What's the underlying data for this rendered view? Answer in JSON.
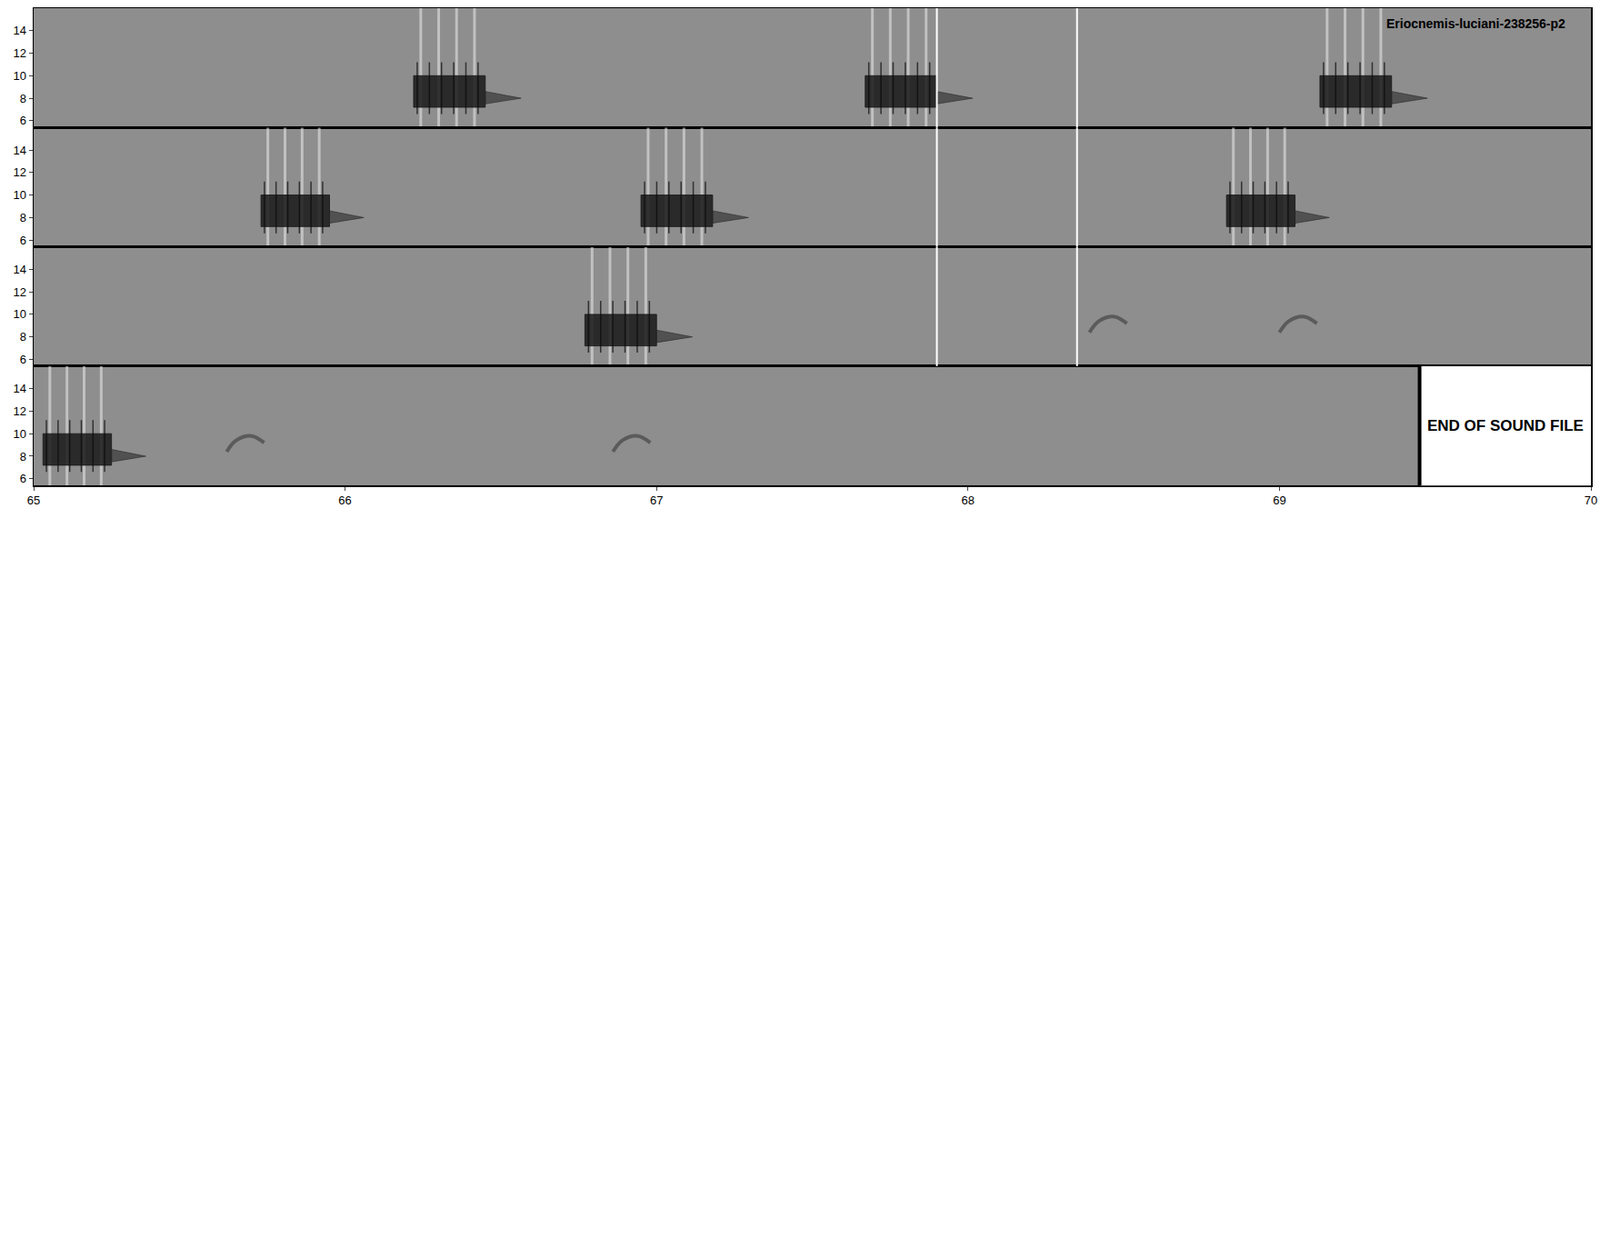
{
  "chart_data": {
    "type": "spectrogram",
    "title": "Eriocnemis-luciani-238256-p2",
    "annotation": "END OF SOUND FILE",
    "end_of_file": 69.45,
    "ylim": [
      5.4,
      16
    ],
    "yticks": [
      6,
      8,
      10,
      12,
      14
    ],
    "panels": [
      {
        "xlim": [
          50,
          55
        ],
        "calls": [
          {
            "start": 51.22,
            "end": 51.45
          },
          {
            "start": 52.67,
            "end": 52.9
          },
          {
            "start": 54.13,
            "end": 54.36
          }
        ],
        "notes": [],
        "selection": [
          52.9,
          53.35
        ]
      },
      {
        "xlim": [
          55,
          60
        ],
        "calls": [
          {
            "start": 55.73,
            "end": 55.95
          },
          {
            "start": 56.95,
            "end": 57.18
          },
          {
            "start": 58.83,
            "end": 59.05
          }
        ],
        "notes": [],
        "selection": [
          57.9,
          58.35
        ]
      },
      {
        "xlim": [
          60,
          65
        ],
        "calls": [
          {
            "start": 61.77,
            "end": 62.0
          }
        ],
        "notes": [
          63.39,
          64.0
        ],
        "selection": [
          62.9,
          63.35
        ]
      },
      {
        "xlim": [
          65,
          70
        ],
        "xticks": [
          65,
          66,
          67,
          68,
          69,
          70
        ],
        "calls": [
          {
            "start": 65.03,
            "end": 65.25
          }
        ],
        "notes": [
          65.62,
          66.86
        ]
      }
    ]
  }
}
